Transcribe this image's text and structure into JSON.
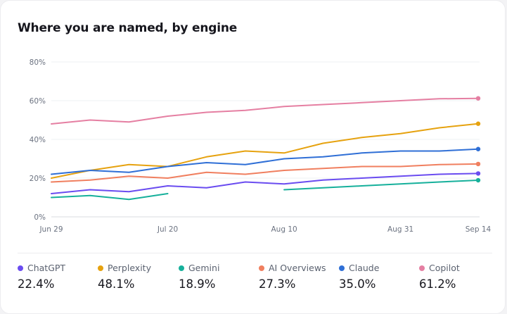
{
  "title": "Where you are named, by engine",
  "chart_data": {
    "type": "line",
    "title": "Where you are named, by engine",
    "xlabel": "",
    "ylabel": "",
    "ylim": [
      0,
      80
    ],
    "yticks": [
      "0%",
      "20%",
      "40%",
      "60%",
      "80%"
    ],
    "ytick_values": [
      0,
      20,
      40,
      60,
      80
    ],
    "xticks": [
      "Jun 29",
      "Jul 20",
      "Aug 10",
      "Aug 31",
      "Sep 14"
    ],
    "xtick_index": [
      0,
      3,
      6,
      9,
      11
    ],
    "x": [
      "Jun 29",
      "Jul 6",
      "Jul 13",
      "Jul 20",
      "Jul 27",
      "Aug 3",
      "Aug 10",
      "Aug 17",
      "Aug 24",
      "Aug 31",
      "Sep 7",
      "Sep 14"
    ],
    "grid": true,
    "legend": "bottom",
    "series": [
      {
        "name": "ChatGPT",
        "color": "#6a4cf0",
        "values": [
          12,
          14,
          13,
          16,
          15,
          18,
          17,
          19,
          20,
          21,
          22,
          22.4
        ]
      },
      {
        "name": "Perplexity",
        "color": "#e6a20f",
        "values": [
          20,
          24,
          27,
          26,
          31,
          34,
          33,
          38,
          41,
          43,
          46,
          48.1
        ]
      },
      {
        "name": "Gemini",
        "color": "#16b09b",
        "values": [
          10,
          11,
          9,
          12,
          null,
          null,
          14,
          15,
          16,
          17,
          18,
          18.9
        ]
      },
      {
        "name": "AI Overviews",
        "color": "#f07f5f",
        "values": [
          18,
          19,
          21,
          20,
          23,
          22,
          24,
          25,
          26,
          26,
          27,
          27.3
        ]
      },
      {
        "name": "Claude",
        "color": "#2f6fd6",
        "values": [
          22,
          24,
          23,
          26,
          28,
          27,
          30,
          31,
          33,
          34,
          34,
          35.0
        ]
      },
      {
        "name": "Copilot",
        "color": "#e57fa2",
        "values": [
          48,
          50,
          49,
          52,
          54,
          55,
          57,
          58,
          59,
          60,
          61,
          61.2
        ]
      }
    ]
  },
  "legend": [
    {
      "name": "ChatGPT",
      "value": "22.4%",
      "color": "#6a4cf0"
    },
    {
      "name": "Perplexity",
      "value": "48.1%",
      "color": "#e6a20f"
    },
    {
      "name": "Gemini",
      "value": "18.9%",
      "color": "#16b09b"
    },
    {
      "name": "AI Overviews",
      "value": "27.3%",
      "color": "#f07f5f"
    },
    {
      "name": "Claude",
      "value": "35.0%",
      "color": "#2f6fd6"
    },
    {
      "name": "Copilot",
      "value": "61.2%",
      "color": "#e57fa2"
    }
  ]
}
